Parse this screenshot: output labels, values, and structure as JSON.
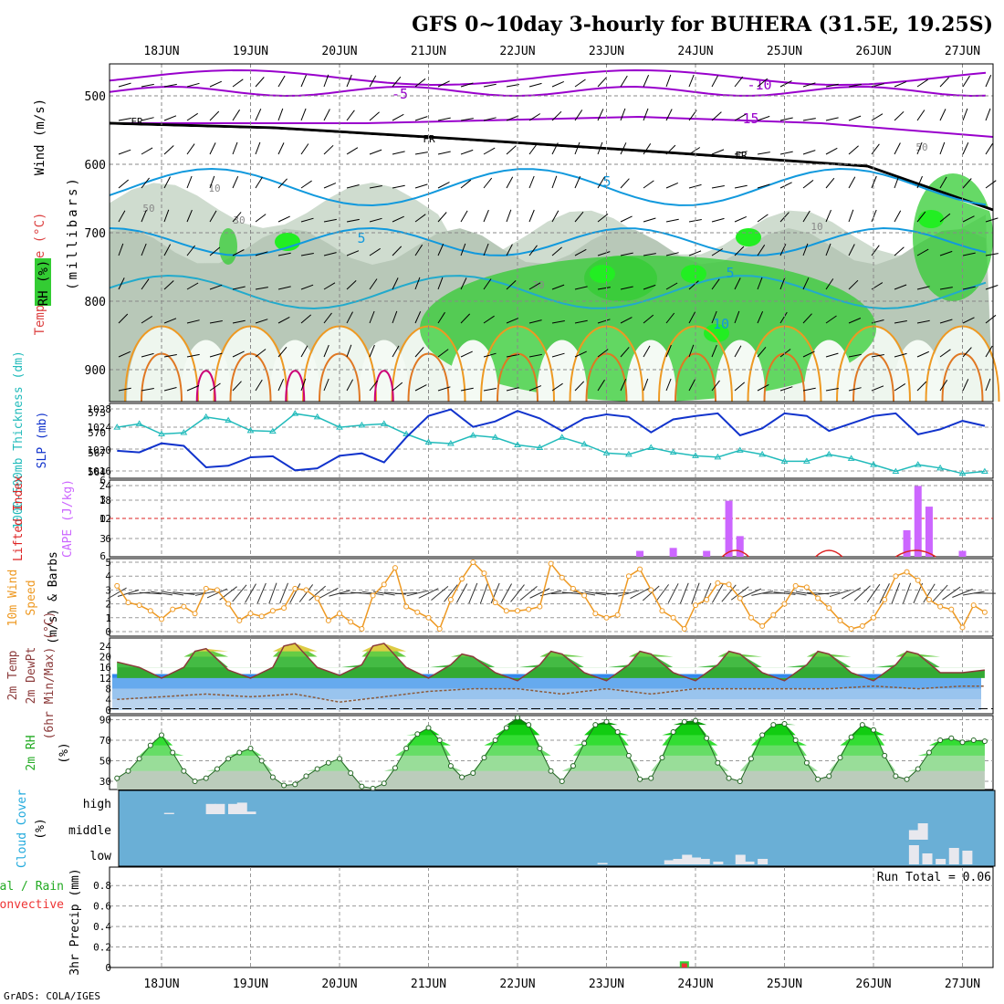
{
  "title": "GFS 0~10day 3-hourly for BUHERA (31.5E, 19.25S)",
  "credit": "GrADS: COLA/IGES",
  "dates": [
    "18JUN",
    "19JUN",
    "20JUN",
    "21JUN",
    "22JUN",
    "23JUN",
    "24JUN",
    "25JUN",
    "26JUN",
    "27JUN"
  ],
  "colors": {
    "rh_green": "#33cc33",
    "rh_light": "#ddeedd",
    "temperature_purple": "#9900cc",
    "temperature_blue": "#1199dd",
    "temperature_teal": "#22aacc",
    "temperature_orange": "#ee9922",
    "temperature_magenta": "#cc0077",
    "freezing": "#000000",
    "slp": "#1133cc",
    "thickness": "#22bbbb",
    "cape": "#cc66ff",
    "lifted_index": "#dd2222",
    "wind10m": "#ee9922",
    "rh2m_green": "#11cc11",
    "cloud_bg": "#6aafd6",
    "cloud_fill": "#e8e8ee",
    "precip_total": "#33cc33",
    "precip_conv": "#ee3333"
  },
  "panels": {
    "upper": {
      "ylabel_wind": "Wind (m/s)",
      "ylabel_temp": "Temperature (°C)",
      "ylabel_rh": "RH (%)",
      "ylabel_p": "(millibars)",
      "ticks": [
        "500",
        "600",
        "700",
        "800",
        "900"
      ],
      "contour_labels": [
        "-5",
        "-10",
        "-15",
        "FR",
        "FR",
        "FR",
        "5",
        "5",
        "5",
        "10",
        "10",
        "10",
        "30",
        "30",
        "50",
        "50",
        "10",
        "10"
      ]
    },
    "slp": {
      "ylabel_thk": "1000-500mb Thickness (dm)",
      "ylabel_slp": "SLP (mb)",
      "left_ticks": [
        "573",
        "570",
        "567",
        "564"
      ],
      "right_ticks": [
        "1028",
        "1024",
        "1020",
        "1016"
      ]
    },
    "cape": {
      "ylabel_li": "Lifted Index",
      "ylabel_cape": "CAPE (J/kg)",
      "left_ticks": [
        "6",
        "3",
        "0",
        "3",
        "6"
      ],
      "right_ticks": [
        "24",
        "18",
        "12",
        "6"
      ]
    },
    "wind": {
      "ylabel1": "10m Wind",
      "ylabel2": "Speed",
      "ylabel3": "(m/s) & Barbs",
      "ticks": [
        "5",
        "4",
        "3",
        "2",
        "1",
        "0"
      ]
    },
    "temp": {
      "ylabel1": "2m Temp",
      "ylabel2": "2m DewPt",
      "ylabel3": "(6hr Min/Max) (°C)",
      "ticks": [
        "24",
        "20",
        "16",
        "12",
        "8",
        "4",
        "0"
      ]
    },
    "rh": {
      "ylabel1": "2m RH",
      "ylabel2": "(%)",
      "ticks": [
        "90",
        "70",
        "50",
        "30"
      ]
    },
    "cloud": {
      "ylabel1": "Cloud Cover",
      "ylabel2": "(%)",
      "levels": [
        "high",
        "middle",
        "low"
      ]
    },
    "precip": {
      "ylabel1": "Total / Rain",
      "ylabel2": "Convective",
      "ylabel3": "3hr Precip (mm)",
      "ticks": [
        "0.8",
        "0.6",
        "0.4",
        "0.2",
        "0"
      ],
      "run_total": "Run Total = 0.06"
    }
  },
  "chart_data": [
    {
      "type": "line",
      "name_hint": "1000-500mb thickness and SLP",
      "x_unit": "days from 18JUN 00Z",
      "series": [
        {
          "name": "SLP (mb)",
          "axis": "right",
          "ylim": [
            1014,
            1029
          ],
          "x": [
            -0.5,
            -0.25,
            0,
            0.25,
            0.5,
            0.75,
            1,
            1.25,
            1.5,
            1.75,
            2,
            2.25,
            2.5,
            2.75,
            3,
            3.25,
            3.5,
            3.75,
            4,
            4.25,
            4.5,
            4.75,
            5,
            5.25,
            5.5,
            5.75,
            6,
            6.25,
            6.5,
            6.75,
            7,
            7.25,
            7.5,
            7.75,
            8,
            8.25,
            8.5,
            8.75,
            9,
            9.25
          ],
          "values": [
            1019.5,
            1019.2,
            1021,
            1020.5,
            1016.2,
            1016.5,
            1018.2,
            1018.4,
            1015.6,
            1016,
            1018.5,
            1019,
            1017.2,
            1022.2,
            1026.5,
            1027.8,
            1024.3,
            1025.4,
            1027.5,
            1026,
            1023.5,
            1026,
            1026.8,
            1026.3,
            1023.2,
            1025.8,
            1026.5,
            1027,
            1022.6,
            1024,
            1027,
            1026.5,
            1023.5,
            1025,
            1026.5,
            1027,
            1022.8,
            1023.8,
            1025.5,
            1024.5
          ]
        },
        {
          "name": "1000-500mb Thickness (dm)",
          "axis": "left",
          "ylim": [
            563.5,
            574.5
          ],
          "x": [
            -0.5,
            -0.25,
            0,
            0.25,
            0.5,
            0.75,
            1,
            1.25,
            1.5,
            1.75,
            2,
            2.25,
            2.5,
            2.75,
            3,
            3.25,
            3.5,
            3.75,
            4,
            4.25,
            4.5,
            4.75,
            5,
            5.25,
            5.5,
            5.75,
            6,
            6.25,
            6.5,
            6.75,
            7,
            7.25,
            7.5,
            7.75,
            8,
            8.25,
            8.5,
            8.75,
            9,
            9.25
          ],
          "values": [
            571,
            571.5,
            570,
            570.2,
            572.5,
            572,
            570.5,
            570.4,
            573,
            572.5,
            571,
            571.3,
            571.5,
            570,
            568.8,
            568.6,
            569.8,
            569.5,
            568.4,
            568,
            569.5,
            568.5,
            567.2,
            567,
            568,
            567.3,
            566.8,
            566.6,
            567.6,
            567,
            566,
            566,
            567,
            566.4,
            565.5,
            564.5,
            565.5,
            565,
            564.2,
            564.5
          ]
        }
      ]
    },
    {
      "type": "bar",
      "name_hint": "CAPE and Lifted Index",
      "x_unit": "days from 18JUN 00Z",
      "ylim": [
        0,
        26
      ],
      "x": [
        5.375,
        5.75,
        6.125,
        6.375,
        6.5,
        8.375,
        8.5,
        8.625,
        9.0
      ],
      "values": [
        2,
        3,
        2,
        19,
        7,
        9,
        24,
        17,
        2
      ]
    },
    {
      "type": "line",
      "name_hint": "10m wind speed",
      "x_unit": "days from 18JUN 00Z",
      "ylim": [
        0,
        5
      ],
      "x": [
        -0.5,
        -0.375,
        -0.25,
        -0.125,
        0,
        0.125,
        0.25,
        0.375,
        0.5,
        0.625,
        0.75,
        0.875,
        1,
        1.125,
        1.25,
        1.375,
        1.5,
        1.625,
        1.75,
        1.875,
        2,
        2.125,
        2.25,
        2.375,
        2.5,
        2.625,
        2.75,
        2.875,
        3,
        3.125,
        3.25,
        3.375,
        3.5,
        3.625,
        3.75,
        3.875,
        4,
        4.125,
        4.25,
        4.375,
        4.5,
        4.625,
        4.75,
        4.875,
        5,
        5.125,
        5.25,
        5.375,
        5.5,
        5.625,
        5.75,
        5.875,
        6,
        6.125,
        6.25,
        6.375,
        6.5,
        6.625,
        6.75,
        6.875,
        7,
        7.125,
        7.25,
        7.375,
        7.5,
        7.625,
        7.75,
        7.875,
        8,
        8.125,
        8.25,
        8.375,
        8.5,
        8.625,
        8.75,
        8.875,
        9,
        9.125,
        9.25
      ],
      "values": [
        3.3,
        2.1,
        1.9,
        1.5,
        0.9,
        1.6,
        1.8,
        1.3,
        3.1,
        3.0,
        2.0,
        0.8,
        1.3,
        1.1,
        1.5,
        1.7,
        3.1,
        3.0,
        2.4,
        0.8,
        1.3,
        0.7,
        0.2,
        2.6,
        3.4,
        4.6,
        1.8,
        1.4,
        1.0,
        0.2,
        2.3,
        3.8,
        5.0,
        4.2,
        2.1,
        1.5,
        1.5,
        1.6,
        1.8,
        4.9,
        3.9,
        3.1,
        2.6,
        1.3,
        1.0,
        1.2,
        4.0,
        4.5,
        3.0,
        1.5,
        1.0,
        0.2,
        1.9,
        2.3,
        3.5,
        3.4,
        2.4,
        1.0,
        0.4,
        1.2,
        2.0,
        3.3,
        3.2,
        2.4,
        1.7,
        0.8,
        0.2,
        0.4,
        1.0,
        2.3,
        4.0,
        4.3,
        3.7,
        2.3,
        1.8,
        1.6,
        0.3,
        1.9,
        1.4
      ]
    },
    {
      "type": "area",
      "name_hint": "2m temperature and dewpoint",
      "x_unit": "days from 18JUN 00Z",
      "ylim": [
        0,
        27
      ],
      "series": [
        {
          "name": "2m Temp",
          "x": [
            -0.5,
            -0.25,
            0,
            0.25,
            0.375,
            0.5,
            0.75,
            1,
            1.25,
            1.375,
            1.5,
            1.75,
            2,
            2.25,
            2.375,
            2.5,
            2.75,
            3,
            3.25,
            3.375,
            3.5,
            3.75,
            4,
            4.25,
            4.375,
            4.5,
            4.75,
            5,
            5.25,
            5.375,
            5.5,
            5.75,
            6,
            6.25,
            6.375,
            6.5,
            6.75,
            7,
            7.25,
            7.375,
            7.5,
            7.75,
            8,
            8.25,
            8.375,
            8.5,
            8.75,
            9,
            9.25
          ],
          "values": [
            18,
            16,
            12,
            16,
            22,
            23,
            15,
            12,
            16,
            24,
            25,
            16,
            13,
            17,
            24,
            25,
            16,
            12,
            17,
            21,
            20,
            14,
            11,
            17,
            22,
            21,
            14,
            11,
            17,
            22,
            21,
            14,
            11,
            17,
            22,
            21,
            14,
            11,
            17,
            22,
            21,
            14,
            11,
            17,
            22,
            21,
            14,
            14,
            15
          ]
        },
        {
          "name": "2m DewPt",
          "x": [
            -0.5,
            0,
            0.5,
            1,
            1.5,
            2,
            2.5,
            3,
            3.5,
            4,
            4.5,
            5,
            5.5,
            6,
            6.5,
            7,
            7.5,
            8,
            8.5,
            9,
            9.25
          ],
          "values": [
            4,
            5,
            6,
            5,
            6,
            3,
            5,
            7,
            8,
            8,
            6,
            8,
            6,
            8,
            8,
            8,
            8,
            9,
            8,
            9,
            9
          ]
        }
      ]
    },
    {
      "type": "area",
      "name_hint": "2m RH",
      "x_unit": "days from 18JUN 00Z",
      "ylim": [
        22,
        94
      ],
      "x": [
        -0.5,
        -0.375,
        -0.25,
        -0.125,
        0,
        0.125,
        0.25,
        0.375,
        0.5,
        0.625,
        0.75,
        0.875,
        1,
        1.125,
        1.25,
        1.375,
        1.5,
        1.625,
        1.75,
        1.875,
        2,
        2.125,
        2.25,
        2.375,
        2.5,
        2.625,
        2.75,
        2.875,
        3,
        3.125,
        3.25,
        3.375,
        3.5,
        3.625,
        3.75,
        3.875,
        4,
        4.125,
        4.25,
        4.375,
        4.5,
        4.625,
        4.75,
        4.875,
        5,
        5.125,
        5.25,
        5.375,
        5.5,
        5.625,
        5.75,
        5.875,
        6,
        6.125,
        6.25,
        6.375,
        6.5,
        6.625,
        6.75,
        6.875,
        7,
        7.125,
        7.25,
        7.375,
        7.5,
        7.625,
        7.75,
        7.875,
        8,
        8.125,
        8.25,
        8.375,
        8.5,
        8.625,
        8.75,
        8.875,
        9,
        9.125,
        9.25
      ],
      "values": [
        33,
        40,
        52,
        65,
        75,
        58,
        40,
        30,
        33,
        42,
        52,
        58,
        62,
        50,
        34,
        26,
        27,
        35,
        42,
        48,
        52,
        38,
        25,
        23,
        28,
        43,
        62,
        76,
        82,
        70,
        45,
        34,
        38,
        53,
        70,
        82,
        92,
        85,
        62,
        40,
        30,
        45,
        67,
        85,
        88,
        78,
        55,
        32,
        33,
        53,
        78,
        88,
        89,
        72,
        48,
        33,
        30,
        52,
        75,
        85,
        86,
        70,
        48,
        32,
        35,
        53,
        73,
        85,
        80,
        55,
        35,
        32,
        42,
        58,
        70,
        72,
        68,
        70,
        69
      ]
    },
    {
      "type": "bar",
      "name_hint": "Cloud cover high/middle/low",
      "x_unit": "days from 18JUN 00Z",
      "series": [
        {
          "name": "high",
          "x": [
            0.08,
            0.55,
            0.65,
            0.8,
            0.9,
            1.0
          ],
          "values": [
            5,
            40,
            40,
            40,
            45,
            10
          ]
        },
        {
          "name": "middle",
          "x": [
            8.45,
            8.55
          ],
          "values": [
            35,
            60
          ]
        },
        {
          "name": "low",
          "x": [
            4.95,
            5.7,
            5.8,
            5.9,
            6.0,
            6.1,
            6.25,
            6.5,
            6.6,
            6.75,
            8.45,
            8.6,
            8.75,
            8.9,
            9.05
          ],
          "values": [
            5,
            15,
            20,
            35,
            25,
            20,
            10,
            35,
            10,
            20,
            70,
            40,
            20,
            60,
            50
          ]
        }
      ]
    },
    {
      "type": "bar",
      "name_hint": "3hr precipitation",
      "x_unit": "days from 18JUN 00Z",
      "ylim": [
        0,
        0.98
      ],
      "series": [
        {
          "name": "Total / Rain",
          "x": [
            5.875
          ],
          "values": [
            0.06
          ]
        },
        {
          "name": "Convective",
          "x": [
            5.875
          ],
          "values": [
            0.04
          ]
        }
      ]
    }
  ]
}
